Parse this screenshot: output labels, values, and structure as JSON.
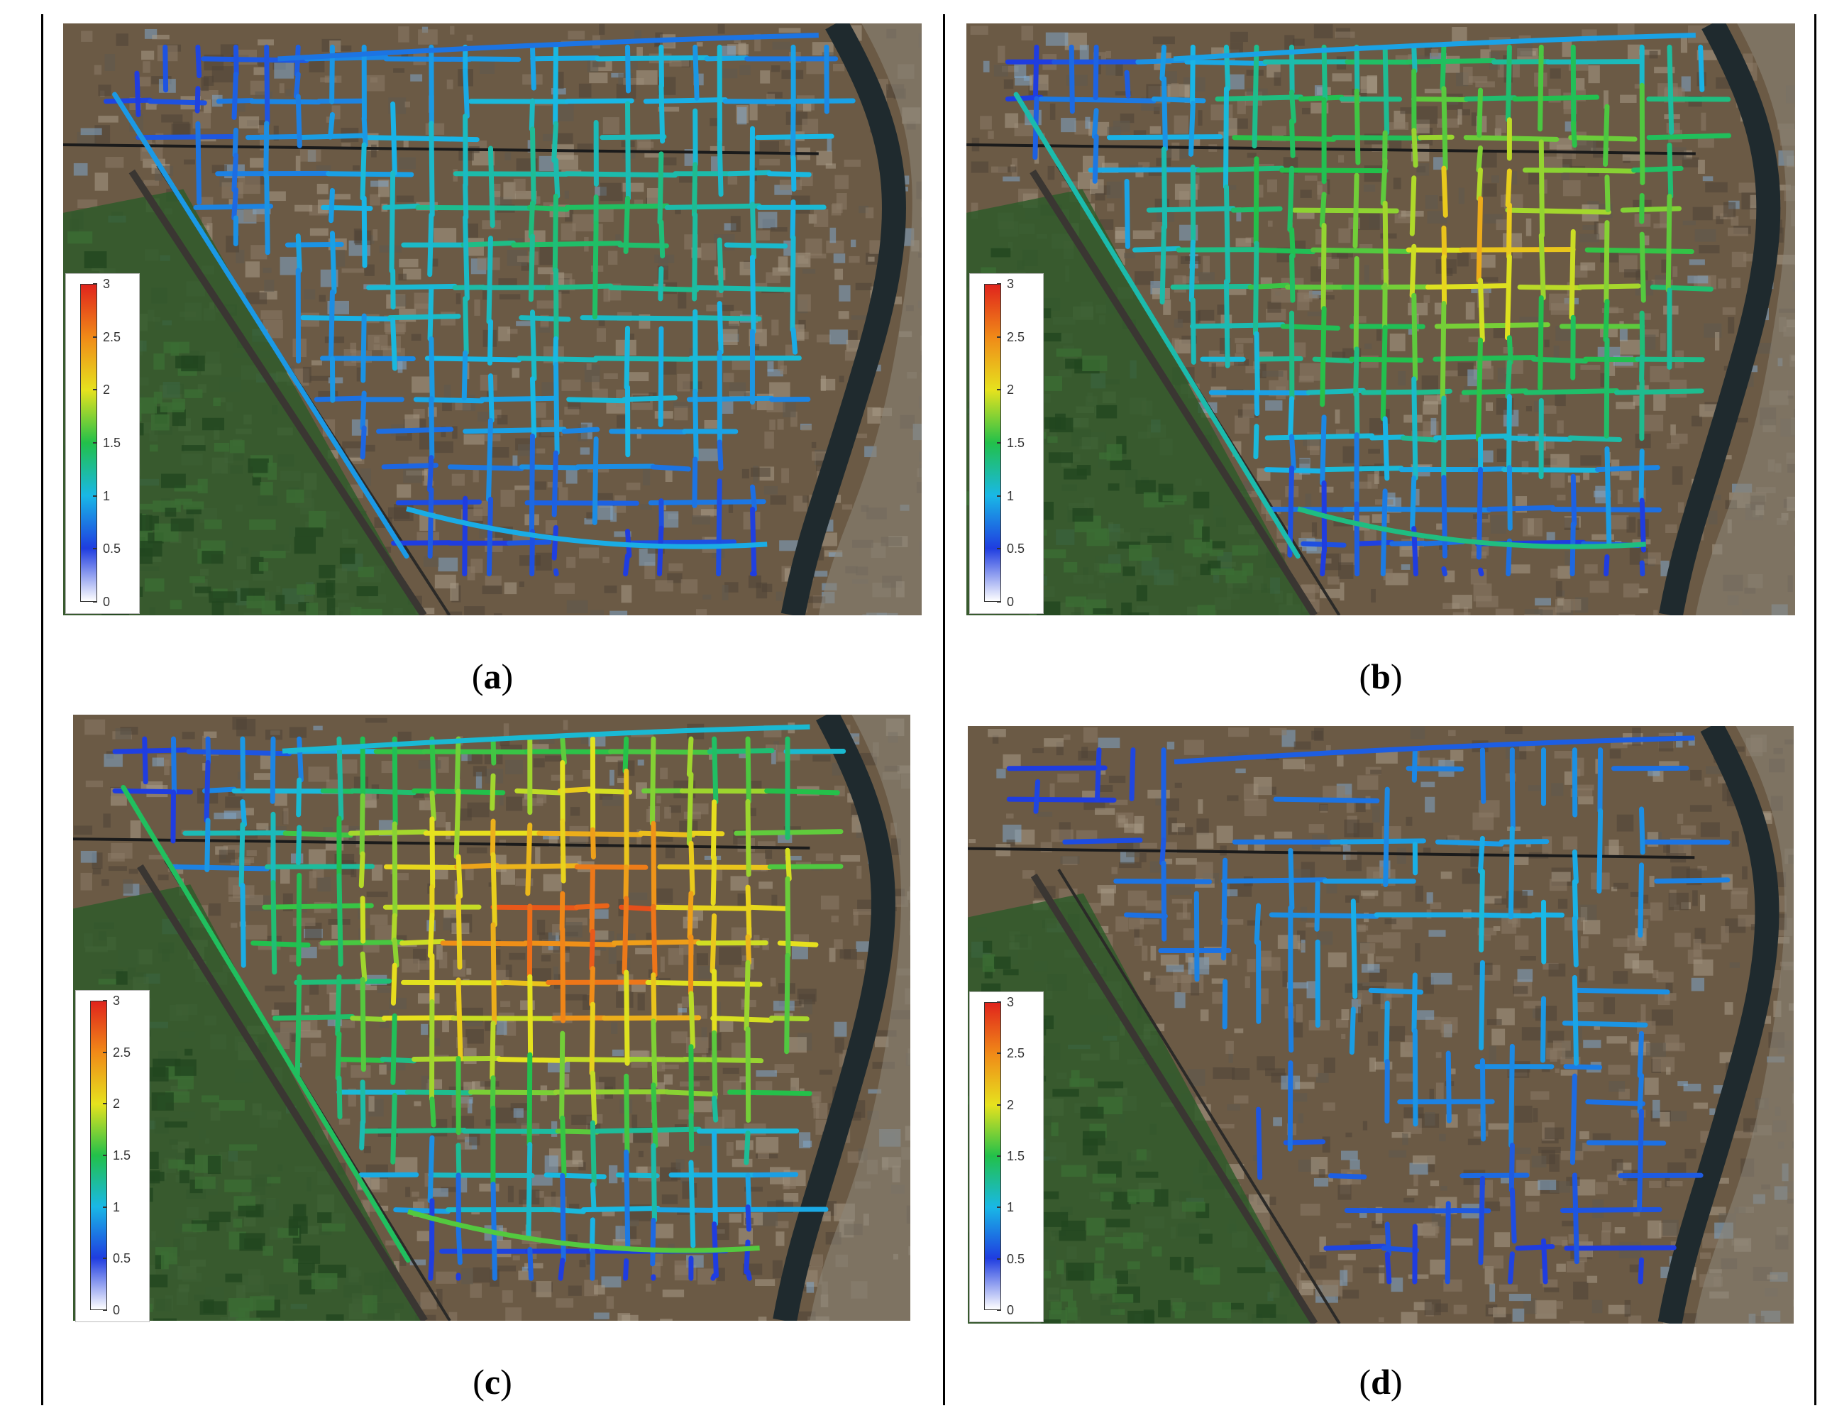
{
  "figure": {
    "panels": [
      {
        "id": "a",
        "caption_open": "(",
        "caption_label": "a",
        "caption_close": ")",
        "intensity": 0.3,
        "density": 0.85
      },
      {
        "id": "b",
        "caption_open": "(",
        "caption_label": "b",
        "caption_close": ")",
        "intensity": 0.55,
        "density": 0.95
      },
      {
        "id": "c",
        "caption_open": "(",
        "caption_label": "c",
        "caption_close": ")",
        "intensity": 0.75,
        "density": 1.0
      },
      {
        "id": "d",
        "caption_open": "(",
        "caption_label": "d",
        "caption_close": ")",
        "intensity": 0.18,
        "density": 0.45
      }
    ],
    "colorbar": {
      "ticks": [
        "3",
        "2.5",
        "2",
        "1.5",
        "1",
        "0.5",
        "0"
      ],
      "min": 0,
      "max": 3,
      "colors": [
        "#ffffff",
        "#1f3de0",
        "#19b8e6",
        "#22c04a",
        "#e6e21e",
        "#f08a18",
        "#e0241c"
      ]
    },
    "colors": {
      "ground": "#6b5a45",
      "field": "#2f5a2a",
      "river": "#1f2a2e",
      "frame": "#000000"
    }
  }
}
